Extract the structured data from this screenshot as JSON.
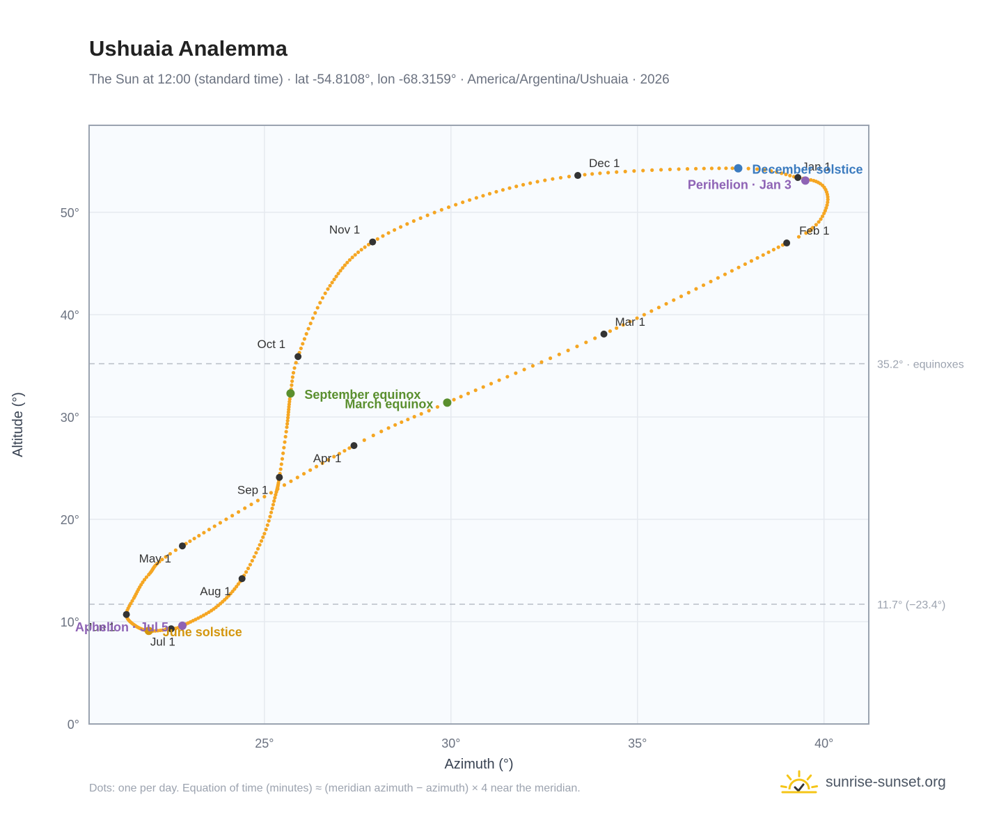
{
  "title": "Ushuaia Analemma",
  "subtitle": "The Sun at 12:00 (standard time) · lat -54.8108°, lon -68.3159° · America/Argentina/Ushuaia · 2026",
  "footnote": "Dots: one per day. Equation of time (minutes) ≈ (meridian azimuth − azimuth) × 4 near the meridian.",
  "brand": {
    "name": "sunrise-sunset.org",
    "color": "#f5c518"
  },
  "colors": {
    "curve": "#f5a623",
    "month_marker": "#333333",
    "solstice_june": "#d4960e",
    "solstice_december": "#3b7bbf",
    "equinox": "#5a8f2e",
    "apsis": "#8e63b5",
    "grid": "#e5e9ef",
    "plot_bg": "#f8fbfe",
    "frame": "#9aa3b0",
    "reference_line": "#b8bec7"
  },
  "chart_data": {
    "type": "scatter",
    "title": "Ushuaia Analemma",
    "xlabel": "Azimuth (°)",
    "ylabel": "Altitude (°)",
    "xlim": [
      20.3,
      41.2
    ],
    "ylim": [
      0,
      58.5
    ],
    "xticks": [
      25,
      30,
      35,
      40
    ],
    "yticks": [
      0,
      10,
      20,
      30,
      40,
      50
    ],
    "tick_suffix": "°",
    "grid": true,
    "legend": "none",
    "daily_path": {
      "name": "Dots: one per day",
      "anchors": [
        {
          "doy": 1,
          "az": 39.3,
          "alt": 53.4
        },
        {
          "doy": 8,
          "az": 39.9,
          "alt": 52.8
        },
        {
          "doy": 14,
          "az": 40.1,
          "alt": 51.5
        },
        {
          "doy": 20,
          "az": 40.0,
          "alt": 49.9
        },
        {
          "doy": 25,
          "az": 39.7,
          "alt": 48.5
        },
        {
          "doy": 32,
          "az": 39.0,
          "alt": 47.0
        },
        {
          "doy": 60,
          "az": 34.1,
          "alt": 38.1
        },
        {
          "doy": 79,
          "az": 29.9,
          "alt": 31.4
        },
        {
          "doy": 91,
          "az": 27.4,
          "alt": 27.2
        },
        {
          "doy": 121,
          "az": 22.8,
          "alt": 17.4
        },
        {
          "doy": 135,
          "az": 21.9,
          "alt": 14.6
        },
        {
          "doy": 145,
          "az": 21.5,
          "alt": 12.3
        },
        {
          "doy": 152,
          "az": 21.3,
          "alt": 10.7
        },
        {
          "doy": 160,
          "az": 21.5,
          "alt": 9.7
        },
        {
          "doy": 172,
          "az": 21.9,
          "alt": 9.1
        },
        {
          "doy": 182,
          "az": 22.5,
          "alt": 9.3
        },
        {
          "doy": 186,
          "az": 22.8,
          "alt": 9.6
        },
        {
          "doy": 200,
          "az": 23.7,
          "alt": 11.4
        },
        {
          "doy": 213,
          "az": 24.4,
          "alt": 14.2
        },
        {
          "doy": 225,
          "az": 25.0,
          "alt": 18.6
        },
        {
          "doy": 235,
          "az": 25.3,
          "alt": 22.4
        },
        {
          "doy": 244,
          "az": 25.4,
          "alt": 24.1
        },
        {
          "doy": 254,
          "az": 25.6,
          "alt": 29.0
        },
        {
          "doy": 266,
          "az": 25.7,
          "alt": 32.3
        },
        {
          "doy": 274,
          "az": 25.9,
          "alt": 35.9
        },
        {
          "doy": 288,
          "az": 26.7,
          "alt": 42.5
        },
        {
          "doy": 305,
          "az": 27.9,
          "alt": 47.1
        },
        {
          "doy": 320,
          "az": 30.5,
          "alt": 51.2
        },
        {
          "doy": 335,
          "az": 33.4,
          "alt": 53.6
        },
        {
          "doy": 355,
          "az": 37.7,
          "alt": 54.3
        },
        {
          "doy": 365,
          "az": 39.3,
          "alt": 53.4
        }
      ]
    },
    "month_markers": [
      {
        "label": "Jan 1",
        "az": 39.3,
        "alt": 53.4
      },
      {
        "label": "Feb 1",
        "az": 39.0,
        "alt": 47.0
      },
      {
        "label": "Mar 1",
        "az": 34.1,
        "alt": 38.1
      },
      {
        "label": "Apr 1",
        "az": 27.4,
        "alt": 27.2
      },
      {
        "label": "May 1",
        "az": 22.8,
        "alt": 17.4
      },
      {
        "label": "Jun 1",
        "az": 21.3,
        "alt": 10.7
      },
      {
        "label": "Jul 1",
        "az": 22.5,
        "alt": 9.3
      },
      {
        "label": "Aug 1",
        "az": 24.4,
        "alt": 14.2
      },
      {
        "label": "Sep 1",
        "az": 25.4,
        "alt": 24.1
      },
      {
        "label": "Oct 1",
        "az": 25.9,
        "alt": 35.9
      },
      {
        "label": "Nov 1",
        "az": 27.9,
        "alt": 47.1
      },
      {
        "label": "Dec 1",
        "az": 33.4,
        "alt": 53.6
      }
    ],
    "events": [
      {
        "label": "December solstice",
        "kind": "solstice_december",
        "az": 37.7,
        "alt": 54.3
      },
      {
        "label": "Perihelion · Jan 3",
        "kind": "apsis",
        "az": 39.5,
        "alt": 53.1
      },
      {
        "label": "September equinox",
        "kind": "equinox",
        "az": 25.7,
        "alt": 32.3
      },
      {
        "label": "March equinox",
        "kind": "equinox",
        "az": 29.9,
        "alt": 31.4
      },
      {
        "label": "June solstice",
        "kind": "solstice_june",
        "az": 21.9,
        "alt": 9.1
      },
      {
        "label": "Aphelion · Jul 5",
        "kind": "apsis",
        "az": 22.8,
        "alt": 9.6
      }
    ],
    "reference_lines": [
      {
        "alt": 35.2,
        "label": "35.2° · equinoxes"
      },
      {
        "alt": 11.7,
        "label": "11.7° (−23.4°)"
      }
    ]
  }
}
